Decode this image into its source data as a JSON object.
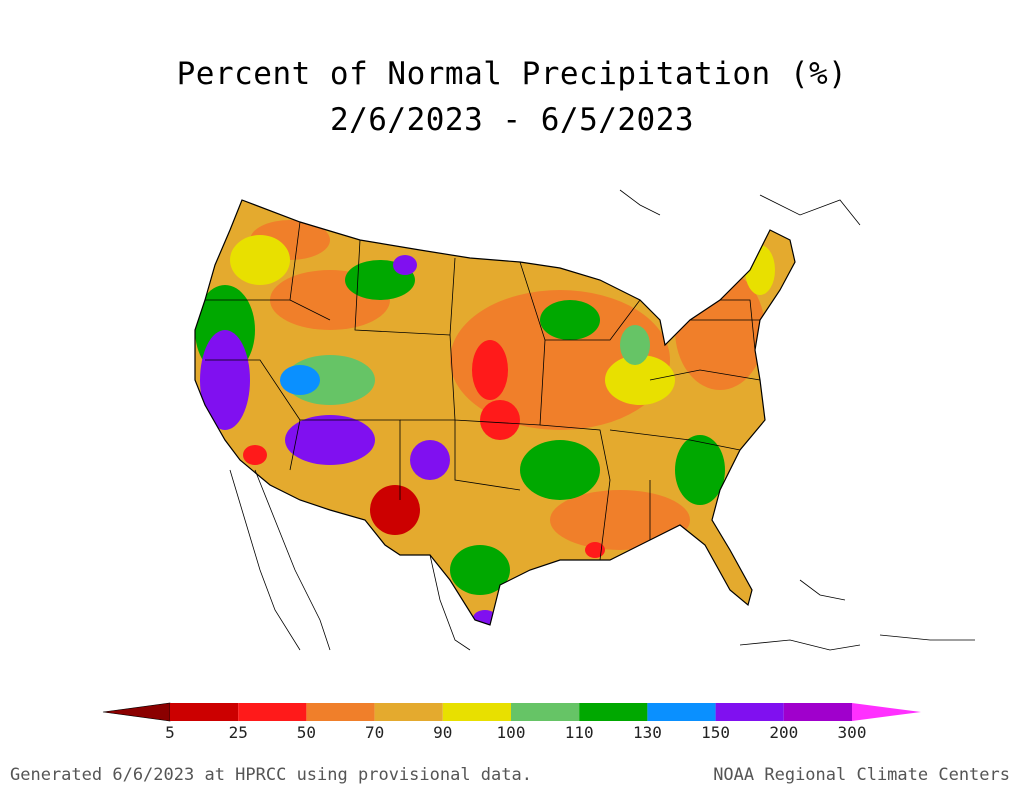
{
  "title": {
    "line1": "Percent of Normal Precipitation (%)",
    "line2": "2/6/2023 - 6/5/2023"
  },
  "legend": {
    "ticks": [
      "5",
      "25",
      "50",
      "70",
      "90",
      "100",
      "110",
      "130",
      "150",
      "200",
      "300"
    ],
    "colors": [
      "#8b0000",
      "#cc0000",
      "#ff1a1a",
      "#f07f2a",
      "#e4aa2e",
      "#e8e000",
      "#66c466",
      "#00a800",
      "#0a90ff",
      "#8010f0",
      "#a000cc",
      "#ff30ff"
    ]
  },
  "footer": {
    "left": "Generated 6/6/2023 at HPRCC using provisional data.",
    "right": "NOAA Regional Climate Centers"
  }
}
